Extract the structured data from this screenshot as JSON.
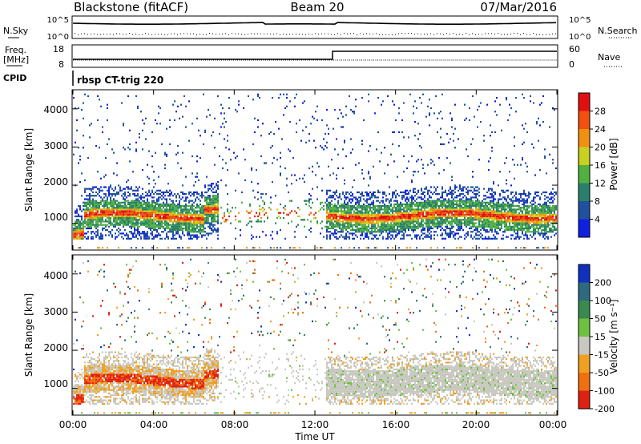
{
  "header": {
    "station": "Blackstone (fitACF)",
    "beam": "Beam 20",
    "date": "07/Mar/2016"
  },
  "top_panels": {
    "nsky_label": "N.Sky",
    "nsearch_label": "N.Search",
    "nsky_ticks": [
      "10^5",
      "10^0"
    ],
    "nsearch_ticks": [
      "10^5",
      "10^0"
    ],
    "freq_label_1": "Freq.",
    "freq_label_2": "[MHz]",
    "freq_ticks": [
      "18",
      "8"
    ],
    "nave_label": "Nave",
    "nave_ticks": [
      "60",
      "0"
    ],
    "cpid_label": "CPID",
    "cpid_value": "rbsp CT-trig 220"
  },
  "chart_data": [
    {
      "type": "heatmap",
      "panel": "power",
      "ylabel": "Slant Range [km]",
      "yticks": [
        "1000",
        "2000",
        "3000",
        "4000"
      ],
      "ylim": [
        300,
        4500
      ],
      "colorbar_label": "Power [dB]",
      "colorbar_ticks": [
        "4",
        "8",
        "12",
        "16",
        "20",
        "24",
        "28"
      ],
      "colors": [
        "#1020e0",
        "#2050a0",
        "#2a7f6a",
        "#50b040",
        "#c8d020",
        "#f09010",
        "#f05010",
        "#e01010"
      ],
      "scatter_band": {
        "center_km": 1200,
        "half_width_km": 150
      }
    },
    {
      "type": "heatmap",
      "panel": "velocity",
      "ylabel": "Slant Range [km]",
      "yticks": [
        "1000",
        "2000",
        "3000",
        "4000"
      ],
      "ylim": [
        300,
        4500
      ],
      "colorbar_label": "Velocity [m s⁻¹]",
      "colorbar_ticks": [
        "200",
        "100",
        "50",
        "15",
        "-15",
        "-50",
        "-100",
        "-200"
      ],
      "colors": [
        "#1030c0",
        "#2d6a80",
        "#3a8a50",
        "#70c040",
        "#c8c8c0",
        "#f0a020",
        "#f07010",
        "#e02010"
      ]
    }
  ],
  "x_axis": {
    "ticks": [
      "00:00",
      "04:00",
      "08:00",
      "12:00",
      "16:00",
      "20:00",
      "00:00"
    ],
    "label": "Time UT"
  }
}
